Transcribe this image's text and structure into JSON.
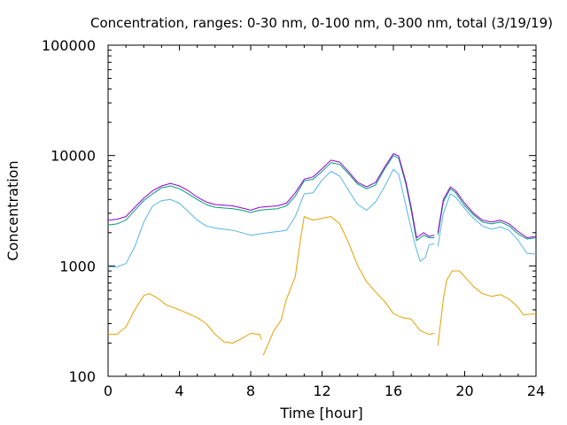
{
  "chart_data": {
    "type": "line",
    "title": "Concentration, ranges: 0-30 nm, 0-100 nm, 0-300 nm, total (3/19/19)",
    "xlabel": "Time [hour]",
    "ylabel": "Concentration",
    "xlim": [
      0,
      24
    ],
    "ylim": [
      100,
      100000
    ],
    "yscale": "log",
    "grid": false,
    "legend": "none",
    "x_ticks": [
      0,
      4,
      8,
      12,
      16,
      20,
      24
    ],
    "x_tick_labels": [
      "0",
      "4",
      "8",
      "12",
      "16",
      "20",
      "24"
    ],
    "y_ticks": [
      100,
      1000,
      10000,
      100000
    ],
    "y_tick_labels": [
      "100",
      "1000",
      "10000",
      "100000"
    ],
    "series": [
      {
        "color": "#e69f00",
        "points": [
          [
            0,
            240
          ],
          [
            0.5,
            240
          ],
          [
            1,
            280
          ],
          [
            1.5,
            400
          ],
          [
            2,
            540
          ],
          [
            2.3,
            560
          ],
          [
            2.7,
            520
          ],
          [
            3,
            480
          ],
          [
            3.3,
            440
          ],
          [
            4,
            400
          ],
          [
            5,
            340
          ],
          [
            5.5,
            300
          ],
          [
            6,
            240
          ],
          [
            6.5,
            205
          ],
          [
            7,
            200
          ],
          [
            7.5,
            220
          ],
          [
            8,
            245
          ],
          [
            8.5,
            240
          ],
          [
            8.6,
            215
          ],
          null,
          [
            8.7,
            155
          ],
          [
            9,
            200
          ],
          [
            9.3,
            260
          ],
          [
            9.7,
            320
          ],
          [
            10,
            500
          ],
          [
            10.5,
            800
          ],
          [
            10.8,
            1800
          ],
          [
            11,
            2800
          ],
          [
            11.5,
            2600
          ],
          [
            12,
            2700
          ],
          [
            12.5,
            2800
          ],
          [
            13,
            2400
          ],
          [
            13.5,
            1600
          ],
          [
            14,
            1000
          ],
          [
            14.5,
            720
          ],
          [
            15,
            580
          ],
          [
            15.5,
            480
          ],
          [
            16,
            370
          ],
          [
            16.5,
            340
          ],
          [
            17,
            330
          ],
          [
            17.5,
            260
          ],
          [
            18,
            240
          ],
          [
            18.3,
            245
          ],
          null,
          [
            18.5,
            190
          ],
          [
            18.8,
            500
          ],
          [
            19,
            750
          ],
          [
            19.3,
            900
          ],
          [
            19.7,
            900
          ],
          [
            20,
            800
          ],
          [
            20.5,
            650
          ],
          [
            21,
            560
          ],
          [
            21.5,
            530
          ],
          [
            22,
            550
          ],
          [
            22.5,
            500
          ],
          [
            23,
            420
          ],
          [
            23.3,
            360
          ],
          [
            24,
            370
          ]
        ]
      },
      {
        "color": "#56b4e9",
        "points": [
          [
            0,
            980
          ],
          [
            0.5,
            980
          ],
          [
            1,
            1050
          ],
          [
            1.5,
            1500
          ],
          [
            2,
            2500
          ],
          [
            2.5,
            3500
          ],
          [
            3,
            3900
          ],
          [
            3.5,
            4000
          ],
          [
            4,
            3700
          ],
          [
            4.5,
            3100
          ],
          [
            5,
            2600
          ],
          [
            5.5,
            2300
          ],
          [
            6,
            2200
          ],
          [
            6.5,
            2150
          ],
          [
            7,
            2100
          ],
          [
            7.5,
            2000
          ],
          [
            8,
            1900
          ],
          [
            8.5,
            1950
          ],
          [
            9,
            2000
          ],
          [
            9.5,
            2050
          ],
          [
            10,
            2100
          ],
          [
            10.5,
            2800
          ],
          [
            11,
            4500
          ],
          [
            11.5,
            4600
          ],
          [
            12,
            6000
          ],
          [
            12.5,
            7200
          ],
          [
            13,
            6500
          ],
          [
            13.5,
            4800
          ],
          [
            14,
            3600
          ],
          [
            14.5,
            3200
          ],
          [
            15,
            3800
          ],
          [
            15.5,
            5200
          ],
          [
            16,
            7500
          ],
          [
            16.3,
            6800
          ],
          [
            16.8,
            3000
          ],
          [
            17.2,
            1600
          ],
          [
            17.5,
            1100
          ],
          [
            17.8,
            1200
          ],
          [
            18,
            1550
          ],
          [
            18.3,
            1600
          ],
          null,
          [
            18.5,
            1500
          ],
          [
            18.8,
            3000
          ],
          [
            19.2,
            4500
          ],
          [
            19.5,
            4200
          ],
          [
            20,
            3300
          ],
          [
            20.5,
            2700
          ],
          [
            21,
            2300
          ],
          [
            21.5,
            2150
          ],
          [
            22,
            2250
          ],
          [
            22.5,
            2100
          ],
          [
            23,
            1700
          ],
          [
            23.5,
            1300
          ],
          [
            24,
            1280
          ]
        ]
      },
      {
        "color": "#009e73",
        "points": [
          [
            0,
            2350
          ],
          [
            0.5,
            2400
          ],
          [
            1,
            2600
          ],
          [
            1.5,
            3200
          ],
          [
            2,
            3900
          ],
          [
            2.5,
            4500
          ],
          [
            3,
            5100
          ],
          [
            3.5,
            5300
          ],
          [
            4,
            5000
          ],
          [
            4.5,
            4500
          ],
          [
            5,
            4000
          ],
          [
            5.5,
            3600
          ],
          [
            6,
            3400
          ],
          [
            7,
            3300
          ],
          [
            7.5,
            3200
          ],
          [
            8,
            3050
          ],
          [
            8.5,
            3200
          ],
          [
            9,
            3250
          ],
          [
            9.5,
            3300
          ],
          [
            10,
            3500
          ],
          [
            10.5,
            4300
          ],
          [
            11,
            5900
          ],
          [
            11.5,
            6100
          ],
          [
            12,
            7200
          ],
          [
            12.5,
            8600
          ],
          [
            13,
            8300
          ],
          [
            13.5,
            6800
          ],
          [
            14,
            5500
          ],
          [
            14.5,
            5000
          ],
          [
            15,
            5400
          ],
          [
            15.5,
            7500
          ],
          [
            16,
            10000
          ],
          [
            16.3,
            9500
          ],
          [
            16.7,
            5500
          ],
          [
            17,
            3200
          ],
          [
            17.3,
            1700
          ],
          [
            17.7,
            1900
          ],
          [
            18,
            1800
          ],
          [
            18.3,
            1800
          ],
          null,
          [
            18.5,
            1900
          ],
          [
            18.8,
            3800
          ],
          [
            19.2,
            5000
          ],
          [
            19.5,
            4600
          ],
          [
            20,
            3500
          ],
          [
            20.5,
            2900
          ],
          [
            21,
            2500
          ],
          [
            21.5,
            2400
          ],
          [
            22,
            2500
          ],
          [
            22.5,
            2300
          ],
          [
            23,
            1950
          ],
          [
            23.5,
            1750
          ],
          [
            24,
            1800
          ]
        ]
      },
      {
        "color": "#9400d3",
        "points": [
          [
            0,
            2600
          ],
          [
            0.5,
            2650
          ],
          [
            1,
            2800
          ],
          [
            1.5,
            3400
          ],
          [
            2,
            4100
          ],
          [
            2.5,
            4800
          ],
          [
            3,
            5300
          ],
          [
            3.5,
            5600
          ],
          [
            4,
            5300
          ],
          [
            4.5,
            4800
          ],
          [
            5,
            4200
          ],
          [
            5.5,
            3800
          ],
          [
            6,
            3600
          ],
          [
            7,
            3500
          ],
          [
            7.5,
            3350
          ],
          [
            8,
            3200
          ],
          [
            8.5,
            3400
          ],
          [
            9,
            3450
          ],
          [
            9.5,
            3500
          ],
          [
            10,
            3700
          ],
          [
            10.5,
            4600
          ],
          [
            11,
            6100
          ],
          [
            11.5,
            6400
          ],
          [
            12,
            7600
          ],
          [
            12.5,
            9100
          ],
          [
            13,
            8700
          ],
          [
            13.5,
            7100
          ],
          [
            14,
            5700
          ],
          [
            14.5,
            5200
          ],
          [
            15,
            5700
          ],
          [
            15.5,
            7800
          ],
          [
            16,
            10400
          ],
          [
            16.3,
            9900
          ],
          [
            16.7,
            5800
          ],
          [
            17,
            3400
          ],
          [
            17.3,
            1800
          ],
          [
            17.7,
            2000
          ],
          [
            18,
            1850
          ],
          [
            18.3,
            1900
          ],
          null,
          [
            18.5,
            2000
          ],
          [
            18.8,
            4000
          ],
          [
            19.2,
            5200
          ],
          [
            19.5,
            4800
          ],
          [
            20,
            3700
          ],
          [
            20.5,
            3000
          ],
          [
            21,
            2600
          ],
          [
            21.5,
            2500
          ],
          [
            22,
            2600
          ],
          [
            22.5,
            2400
          ],
          [
            23,
            2050
          ],
          [
            23.5,
            1800
          ],
          [
            24,
            1850
          ]
        ]
      }
    ]
  }
}
